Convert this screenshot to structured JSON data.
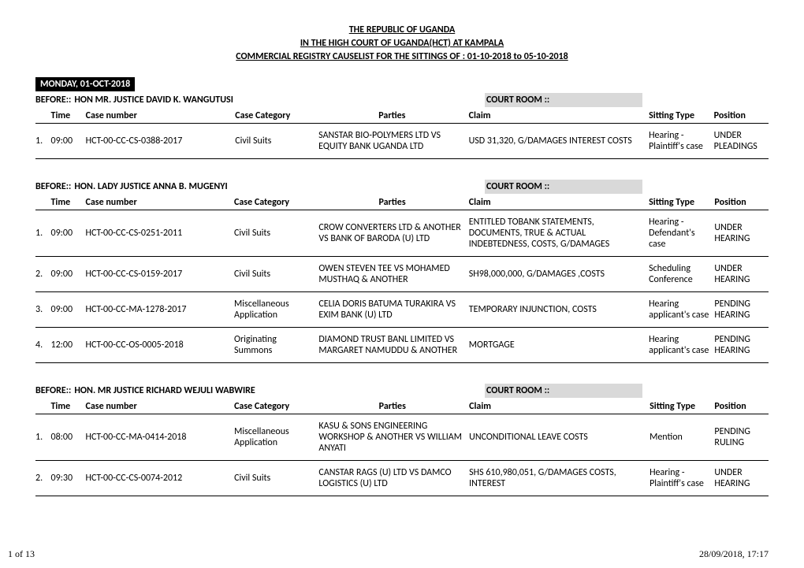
{
  "header": {
    "line1": "THE REPUBLIC OF UGANDA",
    "line2": "IN THE HIGH COURT OF UGANDA(HCT) AT KAMPALA",
    "line3": "COMMERCIAL REGISTRY CAUSELIST FOR THE SITTINGS OF : 01-10-2018 to 05-10-2018"
  },
  "date_banner": "MONDAY, 01-OCT-2018",
  "before_label": "BEFORE::",
  "courtroom_label": "COURT ROOM ::",
  "columns": {
    "time": "Time",
    "case": "Case number",
    "cat": "Case Category",
    "parties": "Parties",
    "claim": "Claim",
    "sitting": "Sitting Type",
    "pos": "Position"
  },
  "sections": [
    {
      "judge": "HON MR. JUSTICE DAVID K. WANGUTUSI",
      "rows": [
        {
          "n": "1.",
          "time": "09:00",
          "case": "HCT-00-CC-CS-0388-2017",
          "cat": "Civil Suits",
          "parties": "SANSTAR BIO-POLYMERS LTD VS EQUITY BANK UGANDA LTD",
          "claim": "USD 31,320, G/DAMAGES INTEREST COSTS",
          "sitting": "Hearing - Plaintiff's case",
          "pos": "UNDER PLEADINGS"
        }
      ]
    },
    {
      "judge": "HON. LADY JUSTICE ANNA B. MUGENYI",
      "rows": [
        {
          "n": "1.",
          "time": "09:00",
          "case": "HCT-00-CC-CS-0251-2011",
          "cat": "Civil Suits",
          "parties": "CROW CONVERTERS LTD & ANOTHER VS BANK OF BARODA (U) LTD",
          "claim": "ENTITLED TOBANK STATEMENTS, DOCUMENTS, TRUE & ACTUAL INDEBTEDNESS, COSTS, G/DAMAGES",
          "sitting": "Hearing - Defendant's case",
          "pos": "UNDER HEARING"
        },
        {
          "n": "2.",
          "time": "09:00",
          "case": "HCT-00-CC-CS-0159-2017",
          "cat": "Civil Suits",
          "parties": "OWEN STEVEN TEE VS MOHAMED MUSTHAQ & ANOTHER",
          "claim": "SH98,000,000, G/DAMAGES ,COSTS",
          "sitting": "Scheduling Conference",
          "pos": "UNDER HEARING"
        },
        {
          "n": "3.",
          "time": "09:00",
          "case": "HCT-00-CC-MA-1278-2017",
          "cat": "Miscellaneous Application",
          "parties": "CELIA DORIS BATUMA TURAKIRA VS EXIM BANK (U) LTD",
          "claim": "TEMPORARY INJUNCTION, COSTS",
          "sitting": "Hearing applicant's case",
          "pos": "PENDING HEARING"
        },
        {
          "n": "4.",
          "time": "12:00",
          "case": "HCT-00-CC-OS-0005-2018",
          "cat": "Originating Summons",
          "parties": "DIAMOND TRUST BANL LIMITED VS MARGARET NAMUDDU & ANOTHER",
          "claim": "MORTGAGE",
          "sitting": "Hearing applicant's case",
          "pos": "PENDING HEARING"
        }
      ]
    },
    {
      "judge": "HON. MR JUSTICE RICHARD WEJULI WABWIRE",
      "rows": [
        {
          "n": "1.",
          "time": "08:00",
          "case": "HCT-00-CC-MA-0414-2018",
          "cat": "Miscellaneous Application",
          "parties": "KASU & SONS ENGINEERING WORKSHOP & ANOTHER VS WILLIAM ANYATI",
          "claim": "UNCONDITIONAL LEAVE COSTS",
          "sitting": "Mention",
          "pos": "PENDING RULING"
        },
        {
          "n": "2.",
          "time": "09:30",
          "case": "HCT-00-CC-CS-0074-2012",
          "cat": "Civil Suits",
          "parties": "CANSTAR RAGS (U) LTD VS DAMCO LOGISTICS (U) LTD",
          "claim": "SHS 610,980,051, G/DAMAGES COSTS, INTEREST",
          "sitting": "Hearing - Plaintiff's case",
          "pos": "UNDER HEARING"
        }
      ]
    }
  ],
  "footer": {
    "left": "1 of 13",
    "right": "28/09/2018, 17:17"
  }
}
